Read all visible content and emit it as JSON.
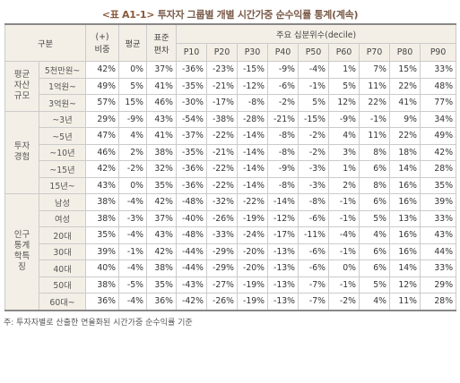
{
  "title": {
    "prefix": "<표 A1-1>",
    "text": "투자자 그룹별 개별 시간가중 순수익률 통계(계속)"
  },
  "headers": {
    "group": "구분",
    "n_top": "(+)",
    "n_bottom": "비중",
    "mean": "평균",
    "sd_top": "표준",
    "sd_bottom": "편차",
    "pct": "주요 십분위수(decile)",
    "deciles": [
      "P10",
      "P20",
      "P30",
      "P40",
      "P50",
      "P60",
      "P70",
      "P80",
      "P90"
    ]
  },
  "groups": [
    {
      "name": "평균\n자산\n규모",
      "rows": [
        {
          "label": "5천만원~",
          "cells": [
            "42%",
            "0%",
            "37%",
            "-36%",
            "-23%",
            "-15%",
            "-9%",
            "-4%",
            "1%",
            "7%",
            "15%",
            "33%"
          ]
        },
        {
          "label": "1억원~",
          "cells": [
            "49%",
            "5%",
            "41%",
            "-35%",
            "-21%",
            "-12%",
            "-6%",
            "-1%",
            "5%",
            "11%",
            "22%",
            "48%"
          ]
        },
        {
          "label": "3억원~",
          "cells": [
            "57%",
            "15%",
            "46%",
            "-30%",
            "-17%",
            "-8%",
            "-2%",
            "5%",
            "12%",
            "22%",
            "41%",
            "77%"
          ]
        }
      ]
    },
    {
      "name": "투자\n경험",
      "rows": [
        {
          "label": "~3년",
          "cells": [
            "29%",
            "-9%",
            "43%",
            "-54%",
            "-38%",
            "-28%",
            "-21%",
            "-15%",
            "-9%",
            "-1%",
            "9%",
            "34%"
          ]
        },
        {
          "label": "~5년",
          "cells": [
            "47%",
            "4%",
            "41%",
            "-37%",
            "-22%",
            "-14%",
            "-8%",
            "-2%",
            "4%",
            "11%",
            "22%",
            "49%"
          ]
        },
        {
          "label": "~10년",
          "cells": [
            "46%",
            "2%",
            "38%",
            "-35%",
            "-21%",
            "-14%",
            "-8%",
            "-2%",
            "3%",
            "8%",
            "18%",
            "42%"
          ]
        },
        {
          "label": "~15년",
          "cells": [
            "42%",
            "-2%",
            "32%",
            "-36%",
            "-22%",
            "-14%",
            "-9%",
            "-3%",
            "1%",
            "6%",
            "14%",
            "28%"
          ]
        },
        {
          "label": "15년~",
          "cells": [
            "43%",
            "0%",
            "35%",
            "-36%",
            "-22%",
            "-14%",
            "-8%",
            "-3%",
            "2%",
            "8%",
            "16%",
            "35%"
          ]
        }
      ]
    },
    {
      "name": "인구\n통계\n학특\n징",
      "rows": [
        {
          "label": "남성",
          "cells": [
            "38%",
            "-4%",
            "42%",
            "-48%",
            "-32%",
            "-22%",
            "-14%",
            "-8%",
            "-1%",
            "6%",
            "16%",
            "39%"
          ]
        },
        {
          "label": "여성",
          "cells": [
            "38%",
            "-3%",
            "37%",
            "-40%",
            "-26%",
            "-19%",
            "-12%",
            "-6%",
            "-1%",
            "5%",
            "13%",
            "33%"
          ]
        },
        {
          "label": "20대",
          "cells": [
            "35%",
            "-4%",
            "43%",
            "-48%",
            "-33%",
            "-24%",
            "-17%",
            "-11%",
            "-4%",
            "4%",
            "16%",
            "43%"
          ]
        },
        {
          "label": "30대",
          "cells": [
            "39%",
            "-1%",
            "42%",
            "-44%",
            "-29%",
            "-20%",
            "-13%",
            "-6%",
            "-1%",
            "6%",
            "16%",
            "44%"
          ]
        },
        {
          "label": "40대",
          "cells": [
            "40%",
            "-4%",
            "38%",
            "-44%",
            "-29%",
            "-20%",
            "-13%",
            "-6%",
            "0%",
            "6%",
            "14%",
            "33%"
          ]
        },
        {
          "label": "50대",
          "cells": [
            "38%",
            "-5%",
            "35%",
            "-43%",
            "-27%",
            "-19%",
            "-13%",
            "-7%",
            "-1%",
            "5%",
            "12%",
            "29%"
          ]
        },
        {
          "label": "60대~",
          "cells": [
            "36%",
            "-4%",
            "36%",
            "-42%",
            "-26%",
            "-19%",
            "-13%",
            "-7%",
            "-2%",
            "4%",
            "11%",
            "28%"
          ]
        }
      ]
    }
  ],
  "note": "주: 투자자별로 산출한 연율화된 시간가중 순수익률 기준"
}
